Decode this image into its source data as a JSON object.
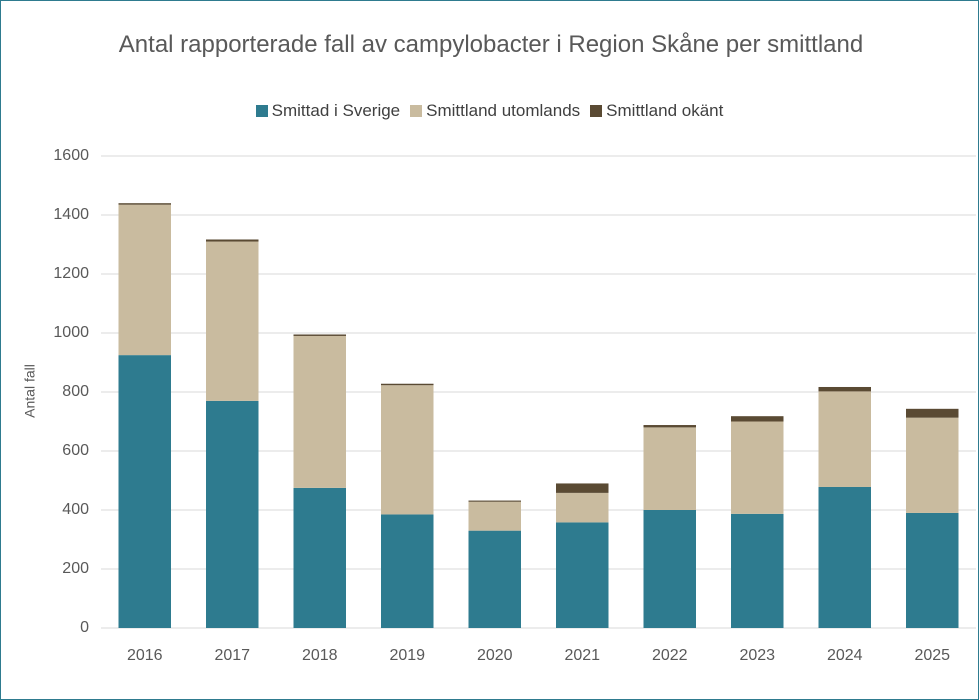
{
  "chart_data": {
    "type": "stacked_bar",
    "title": "Antal rapporterade fall av campylobacter i Region Skåne per smittland",
    "ylabel": "Antal fall",
    "categories": [
      "2016",
      "2017",
      "2018",
      "2019",
      "2020",
      "2021",
      "2022",
      "2023",
      "2024",
      "2025"
    ],
    "series": [
      {
        "name": "Smittad i Sverige",
        "color": "#2e7b8f",
        "values": [
          925,
          770,
          475,
          385,
          330,
          358,
          400,
          387,
          478,
          390
        ]
      },
      {
        "name": "Smittland utomlands",
        "color": "#c9bb9f",
        "values": [
          510,
          540,
          515,
          438,
          98,
          100,
          280,
          313,
          324,
          323
        ]
      },
      {
        "name": "Smittland okänt",
        "color": "#5a4a33",
        "values": [
          5,
          7,
          5,
          5,
          4,
          32,
          8,
          18,
          15,
          30
        ]
      }
    ],
    "ylim": [
      0,
      1600
    ],
    "yticks": [
      0,
      200,
      400,
      600,
      800,
      1000,
      1200,
      1400,
      1600
    ],
    "grid": true
  }
}
